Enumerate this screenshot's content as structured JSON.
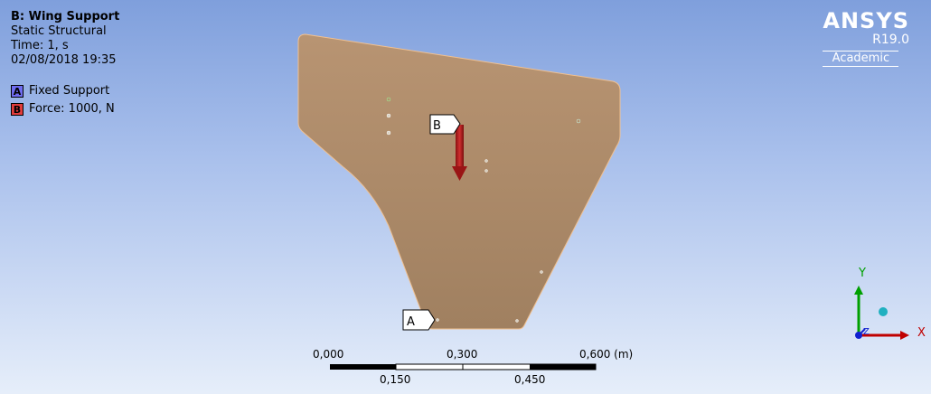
{
  "header": {
    "title": "B: Wing Support",
    "analysis_type": "Static Structural",
    "time": "Time: 1, s",
    "timestamp": "02/08/2018 19:35"
  },
  "legend": {
    "items": [
      {
        "tag": "A",
        "label": "Fixed Support",
        "color": "#6f6cf0"
      },
      {
        "tag": "B",
        "label": "Force: 1000, N",
        "color": "#e23c3c"
      }
    ]
  },
  "logo": {
    "name": "ANSYS",
    "version": "R19.0",
    "edition": "Academic"
  },
  "model": {
    "part_color": "#a88868",
    "callouts": {
      "fixed_support": "A",
      "force": "B"
    },
    "force_arrow_color": "#b02020"
  },
  "scale": {
    "top_labels": [
      "0,000",
      "0,300",
      "0,600 (m)"
    ],
    "bottom_labels": [
      "0,150",
      "0,450"
    ]
  },
  "triad": {
    "x_label": "X",
    "y_label": "Y",
    "z_label": "Z",
    "x_color": "#c00000",
    "y_color": "#00a000",
    "z_color": "#1020d0"
  }
}
